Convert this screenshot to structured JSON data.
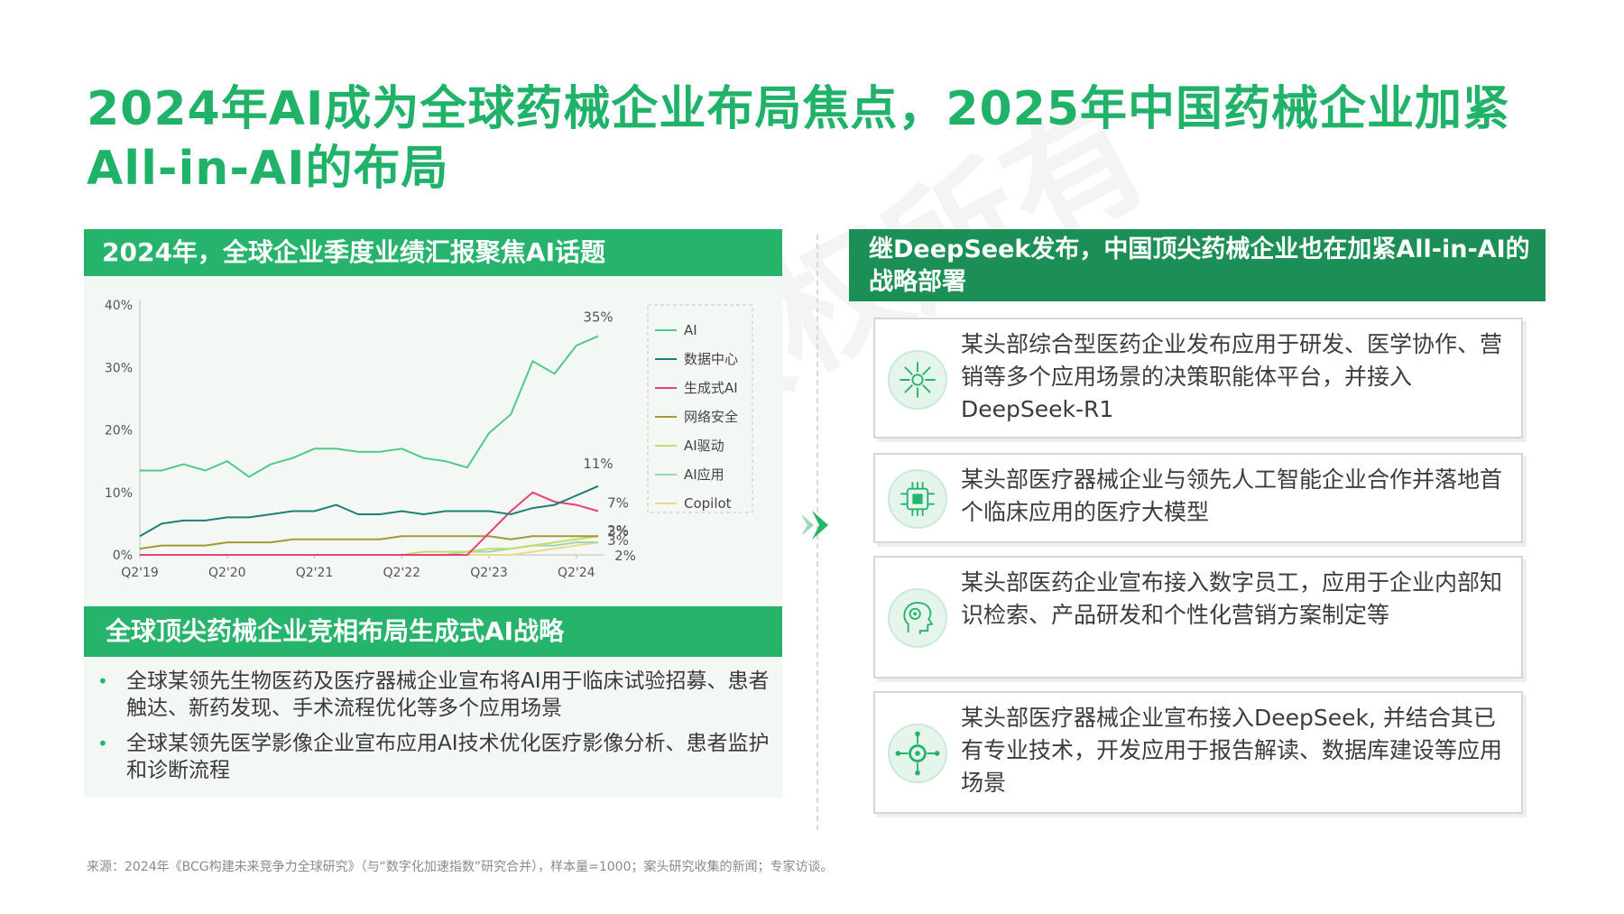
{
  "page_title": "2024年AI成为全球药械企业布局焦点，2025年中国药械企业加紧All-in-AI的布局",
  "watermark": "BCG版权所有",
  "left": {
    "chart_heading": "2024年，全球企业季度业绩汇报聚焦AI话题",
    "strategy_heading": "全球顶尖药械企业竞相布局生成式AI战略",
    "bullets": [
      "全球某领先生物医药及医疗器械企业宣布将AI用于临床试验招募、患者触达、新药发现、手术流程优化等多个应用场景",
      "全球某领先医学影像企业宣布应用AI技术优化医疗影像分析、患者监护和诊断流程"
    ]
  },
  "right": {
    "heading": "继DeepSeek发布，中国顶尖药械企业也在加紧All-in-AI的战略部署",
    "cards": [
      {
        "text": "某头部综合型医药企业发布应用于研发、医学协作、营销等多个应用场景的决策职能体平台，并接入DeepSeek-R1",
        "icon": "network-hub-icon"
      },
      {
        "text": "某头部医疗器械企业与领先人工智能企业合作并落地首个临床应用的医疗大模型",
        "icon": "ai-chip-icon"
      },
      {
        "text": "某头部医药企业宣布接入数字员工，应用于企业内部知识检索、产品研发和个性化营销方案制定等",
        "icon": "ai-head-icon"
      },
      {
        "text": "某头部医疗器械企业宣布接入DeepSeek, 并结合其已有专业技术，开发应用于报告解读、数据库建设等应用场景",
        "icon": "gear-network-icon"
      }
    ]
  },
  "source": "来源：2024年《BCG构建未来竞争力全球研究》（与“数字化加速指数”研究合并），样本量=1000；案头研究收集的新闻；专家访谈。",
  "chart_data": {
    "type": "line",
    "yticks": [
      "0%",
      "10%",
      "20%",
      "30%",
      "40%"
    ],
    "ylim": [
      0,
      40
    ],
    "xticks": [
      "Q2'19",
      "Q2'20",
      "Q2'21",
      "Q2'22",
      "Q2'23",
      "Q2'24"
    ],
    "x_tick_index": [
      0,
      4,
      8,
      12,
      16,
      20
    ],
    "legend_position": "right",
    "series": [
      {
        "name": "AI",
        "color": "#4fc98a",
        "values": [
          13.5,
          13.5,
          14.5,
          13.5,
          15,
          12.5,
          14.5,
          15.5,
          17,
          17,
          16.5,
          16.5,
          17,
          15.5,
          15,
          14,
          19.5,
          22.5,
          31,
          29,
          33.5,
          35
        ],
        "end_label": "35%"
      },
      {
        "name": "数据中心",
        "color": "#1f7f78",
        "values": [
          3,
          5,
          5.5,
          5.5,
          6,
          6,
          6.5,
          7,
          7,
          8,
          6.5,
          6.5,
          7,
          6.5,
          7,
          7,
          7,
          6.5,
          7.5,
          8,
          9.5,
          11
        ],
        "end_label": "11%"
      },
      {
        "name": "生成式AI",
        "color": "#e8407a",
        "values": [
          0,
          0,
          0,
          0,
          0,
          0,
          0,
          0,
          0,
          0,
          0,
          0,
          0,
          0,
          0,
          0,
          3.5,
          7,
          10,
          8.5,
          8,
          7
        ],
        "end_label": "7%"
      },
      {
        "name": "网络安全",
        "color": "#a29a36",
        "values": [
          1,
          1.5,
          1.5,
          1.5,
          2,
          2,
          2,
          2.5,
          2.5,
          2.5,
          2.5,
          2.5,
          3,
          3,
          3,
          3,
          3,
          2.5,
          3,
          3,
          3,
          3
        ],
        "end_label": "3%"
      },
      {
        "name": "AI驱动",
        "color": "#c7dc64",
        "values": [
          0,
          0,
          0,
          0,
          0,
          0,
          0,
          0,
          0,
          0,
          0,
          0,
          0,
          0.5,
          0.5,
          0.5,
          1,
          1,
          1.5,
          2,
          2.5,
          3
        ],
        "end_label": "3%"
      },
      {
        "name": "AI应用",
        "color": "#9ad7b4",
        "values": [
          0,
          0,
          0,
          0,
          0,
          0,
          0,
          0,
          0,
          0,
          0,
          0,
          0,
          0,
          0,
          0.5,
          0.5,
          1,
          1.5,
          1.5,
          2,
          2
        ],
        "end_label": "2%"
      },
      {
        "name": "Copilot",
        "color": "#e8dc8a",
        "values": [
          0,
          0,
          0,
          0,
          0,
          0,
          0,
          0,
          0,
          0,
          0,
          0,
          0,
          0,
          0,
          0,
          0,
          0,
          0.5,
          1,
          1.5,
          2
        ],
        "end_label": "2%"
      }
    ]
  }
}
